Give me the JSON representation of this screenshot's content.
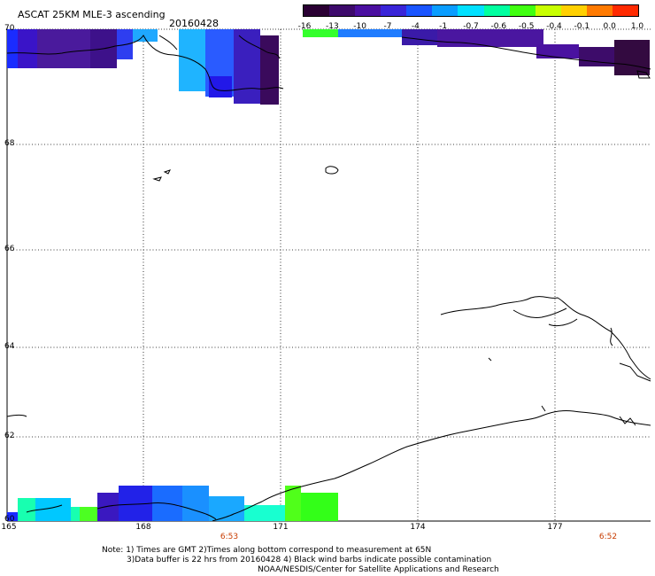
{
  "header": {
    "title": "ASCAT 25KM MLE-3 ascending",
    "date": "20160428"
  },
  "colorbar": {
    "tick_labels": [
      "-16",
      "-13",
      "-10",
      "-7",
      "-4",
      "-1",
      "-0.7",
      "-0.6",
      "-0.5",
      "-0.4",
      "-0.1",
      "0.0",
      "1.0"
    ],
    "colors": [
      "#2a0033",
      "#3d0a6b",
      "#4b0fa0",
      "#3a25d8",
      "#1a55ff",
      "#0a9dff",
      "#00e0ff",
      "#00ffa0",
      "#40ff10",
      "#c8ff00",
      "#ffd000",
      "#ff7a00",
      "#ff2a00"
    ]
  },
  "map": {
    "latitude_labels": [
      "70",
      "68",
      "66",
      "64",
      "62",
      "60"
    ],
    "longitude_labels": [
      "165",
      "168",
      "171",
      "174",
      "177"
    ],
    "time_labels": [
      "6:53",
      "6:52"
    ]
  },
  "footer": {
    "note_line1": "Note: 1) Times are GMT 2)Times along bottom correspond to measurement at 65N",
    "note_line2": "3)Data buffer is 22 hrs from 20160428 4) Black wind barbs indicate possible contamination",
    "credit": "NOAA/NESDIS/Center for Satellite Applications and Research"
  }
}
